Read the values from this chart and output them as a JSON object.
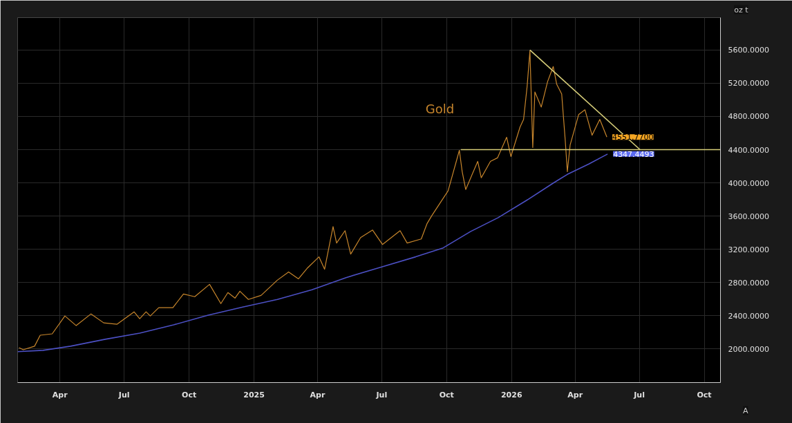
{
  "chart_data": {
    "type": "line",
    "xlim": [
      "2024-02-01",
      "2026-10-24"
    ],
    "xticks": [
      {
        "value": "2024-04-01",
        "label": "Apr"
      },
      {
        "value": "2024-07-01",
        "label": "Jul"
      },
      {
        "value": "2024-10-01",
        "label": "Oct"
      },
      {
        "value": "2025-01-01",
        "label": "2025"
      },
      {
        "value": "2025-04-01",
        "label": "Apr"
      },
      {
        "value": "2025-07-01",
        "label": "Jul"
      },
      {
        "value": "2025-10-01",
        "label": "Oct"
      },
      {
        "value": "2026-01-01",
        "label": "2026"
      },
      {
        "value": "2026-04-01",
        "label": "Apr"
      },
      {
        "value": "2026-07-01",
        "label": "Jul"
      },
      {
        "value": "2026-10-01",
        "label": "Oct"
      }
    ],
    "ylim": [
      1595,
      5990
    ],
    "yticks": [
      {
        "value": 2000,
        "label": "2000.0000"
      },
      {
        "value": 2400,
        "label": "2400.0000"
      },
      {
        "value": 2800,
        "label": "2800.0000"
      },
      {
        "value": 3200,
        "label": "3200.0000"
      },
      {
        "value": 3600,
        "label": "3600.0000"
      },
      {
        "value": 4000,
        "label": "4000.0000"
      },
      {
        "value": 4400,
        "label": "4400.0000"
      },
      {
        "value": 4800,
        "label": "4800.0000"
      },
      {
        "value": 5200,
        "label": "5200.0000"
      },
      {
        "value": 5600,
        "label": "5600.0000"
      }
    ],
    "grid": true,
    "series": [
      {
        "name": "Gold",
        "color": "#c8862c",
        "x": [
          "2024-02-03",
          "2024-02-09",
          "2024-02-25",
          "2024-03-04",
          "2024-03-21",
          "2024-04-08",
          "2024-04-24",
          "2024-05-15",
          "2024-06-02",
          "2024-06-21",
          "2024-07-15",
          "2024-07-23",
          "2024-08-01",
          "2024-08-07",
          "2024-08-19",
          "2024-09-08",
          "2024-09-23",
          "2024-10-09",
          "2024-10-30",
          "2024-11-15",
          "2024-11-25",
          "2024-12-05",
          "2024-12-12",
          "2024-12-24",
          "2025-01-11",
          "2025-02-03",
          "2025-02-19",
          "2025-03-05",
          "2025-03-18",
          "2025-04-03",
          "2025-04-11",
          "2025-04-23",
          "2025-04-28",
          "2025-05-10",
          "2025-05-18",
          "2025-06-01",
          "2025-06-18",
          "2025-07-02",
          "2025-07-27",
          "2025-08-06",
          "2025-08-26",
          "2025-09-03",
          "2025-09-10",
          "2025-10-03",
          "2025-10-19",
          "2025-10-23",
          "2025-10-28",
          "2025-11-14",
          "2025-11-19",
          "2025-12-02",
          "2025-12-12",
          "2025-12-25",
          "2025-12-31",
          "2026-01-13",
          "2026-01-18",
          "2026-01-23",
          "2026-01-27",
          "2026-01-31",
          "2026-02-03",
          "2026-02-12",
          "2026-02-21",
          "2026-03-01",
          "2026-03-06",
          "2026-03-13",
          "2026-03-18",
          "2026-03-21",
          "2026-03-25",
          "2026-04-06",
          "2026-04-15",
          "2026-04-25",
          "2026-05-06",
          "2026-05-16"
        ],
        "values": [
          2016,
          1990,
          2033,
          2165,
          2182,
          2397,
          2281,
          2422,
          2314,
          2298,
          2447,
          2364,
          2447,
          2397,
          2497,
          2497,
          2662,
          2629,
          2778,
          2546,
          2679,
          2612,
          2695,
          2596,
          2645,
          2828,
          2927,
          2844,
          2977,
          3109,
          2960,
          3473,
          3275,
          3424,
          3142,
          3341,
          3432,
          3258,
          3424,
          3275,
          3324,
          3506,
          3606,
          3904,
          4392,
          4135,
          3920,
          4259,
          4061,
          4259,
          4301,
          4549,
          4317,
          4673,
          4764,
          5161,
          5592,
          4425,
          5095,
          4913,
          5219,
          5401,
          5186,
          5070,
          4516,
          4135,
          4458,
          4822,
          4880,
          4574,
          4764,
          4552
        ]
      },
      {
        "color": "#4c50c4",
        "x": [
          "2024-02-01",
          "2024-03-08",
          "2024-04-16",
          "2024-06-04",
          "2024-07-23",
          "2024-09-09",
          "2024-10-28",
          "2024-12-16",
          "2025-02-03",
          "2025-03-24",
          "2025-05-12",
          "2025-06-30",
          "2025-08-18",
          "2025-09-26",
          "2025-11-04",
          "2025-12-13",
          "2026-01-22",
          "2026-03-02",
          "2026-03-21",
          "2026-04-20",
          "2026-05-17"
        ],
        "values": [
          1967,
          1983,
          2033,
          2116,
          2190,
          2290,
          2406,
          2505,
          2596,
          2712,
          2861,
          2985,
          3109,
          3217,
          3415,
          3581,
          3788,
          4003,
          4102,
          4226,
          4347
        ]
      },
      {
        "color": "#d8cf7a",
        "x": [
          "2025-10-21",
          "2026-10-24"
        ],
        "values": [
          4400,
          4400
        ]
      },
      {
        "color": "#d8cf7a",
        "x": [
          "2026-01-27",
          "2026-07-02"
        ],
        "values": [
          5600,
          4400
        ]
      }
    ],
    "annotations": [
      {
        "text": "4551.7700",
        "x": "2026-05-16",
        "y": 4551.77
      },
      {
        "text": "4347.4493",
        "x": "2026-05-17",
        "y": 4347.4493
      },
      "oz t",
      "A"
    ]
  }
}
